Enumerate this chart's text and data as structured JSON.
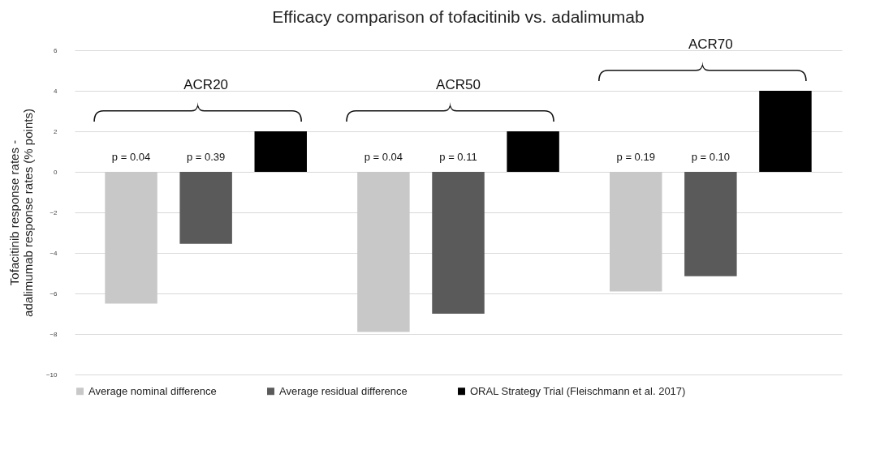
{
  "chart_data": {
    "type": "bar",
    "title": "Efficacy comparison of tofacitinib vs. adalimumab",
    "ylabel": "Tofacitinib response rates - adalimumab response rates  (% points)",
    "categories": [
      "ACR20",
      "ACR50",
      "ACR70"
    ],
    "series": [
      {
        "name": "Average nominal difference",
        "color": "#c8c8c8",
        "values": [
          -6.5,
          -7.9,
          -5.9
        ]
      },
      {
        "name": "Average residual difference",
        "color": "#5a5a5a",
        "values": [
          -3.55,
          -7.0,
          -5.15
        ]
      },
      {
        "name": "ORAL Strategy Trial (Fleischmann et al. 2017)",
        "color": "#000000",
        "values": [
          2,
          2,
          4
        ]
      }
    ],
    "annotations": [
      "p = 0.04",
      "p = 0.39",
      "p = 0.04",
      "p = 0.11",
      "p = 0.19",
      "p = 0.10"
    ],
    "ylim": [
      -10,
      6
    ],
    "yticks": [
      -10,
      -8,
      -6,
      -4,
      -2,
      0,
      2,
      4,
      6
    ],
    "grid": "y",
    "legend": "bottom"
  }
}
